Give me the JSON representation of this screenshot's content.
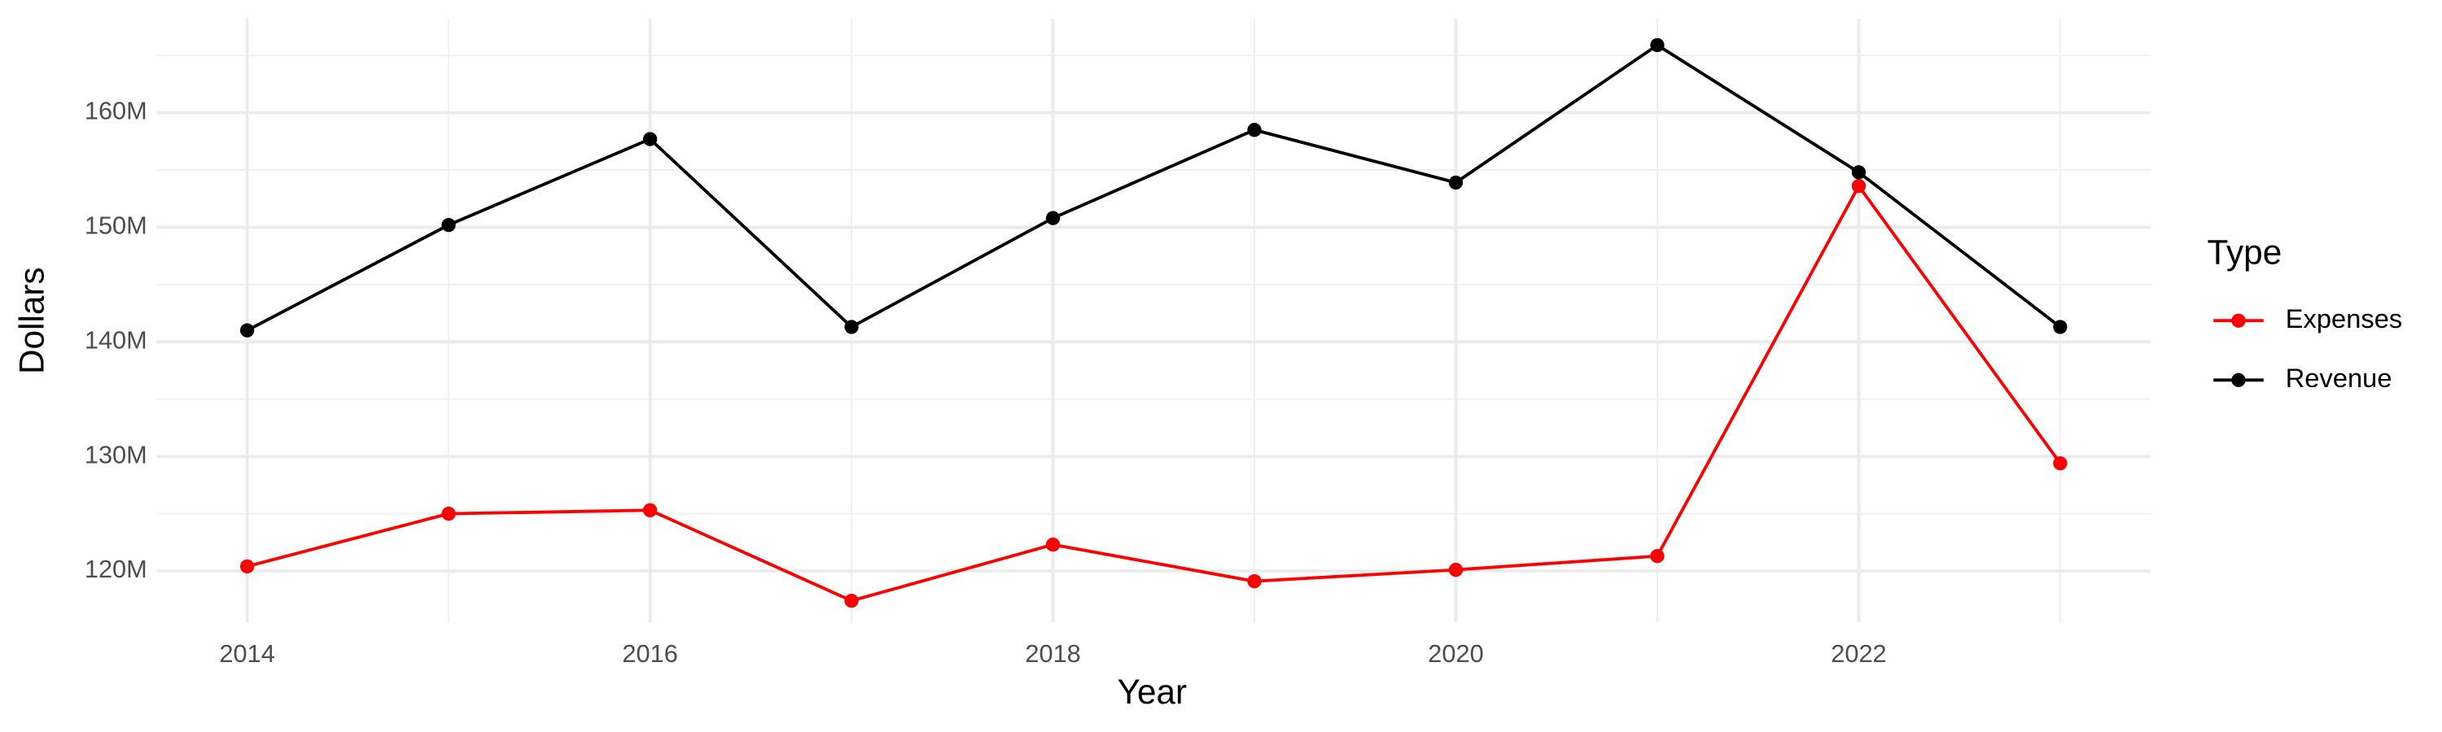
{
  "chart_data": {
    "type": "line",
    "x_label": "Year",
    "y_label": "Dollars",
    "legend_title": "Type",
    "legend_position": "right",
    "grid": true,
    "x": [
      2014,
      2015,
      2016,
      2017,
      2018,
      2019,
      2020,
      2021,
      2022,
      2023
    ],
    "series": [
      {
        "name": "Expenses",
        "color": "#ff0000",
        "values": [
          120400000,
          125000000,
          125300000,
          117400000,
          122300000,
          119100000,
          120100000,
          121300000,
          153600000,
          129400000
        ]
      },
      {
        "name": "Revenue",
        "color": "#000000",
        "values": [
          141000000,
          150200000,
          157700000,
          141300000,
          150800000,
          158500000,
          153900000,
          165900000,
          154800000,
          141300000
        ]
      }
    ],
    "xlim": [
      2013.55,
      2023.45
    ],
    "xticks": [
      2014,
      2016,
      2018,
      2020,
      2022
    ],
    "ylim": [
      115500000,
      168200000
    ],
    "yticks": [
      {
        "value": 120000000,
        "label": "120M"
      },
      {
        "value": 130000000,
        "label": "130M"
      },
      {
        "value": 140000000,
        "label": "140M"
      },
      {
        "value": 150000000,
        "label": "150M"
      },
      {
        "value": 160000000,
        "label": "160M"
      }
    ]
  }
}
